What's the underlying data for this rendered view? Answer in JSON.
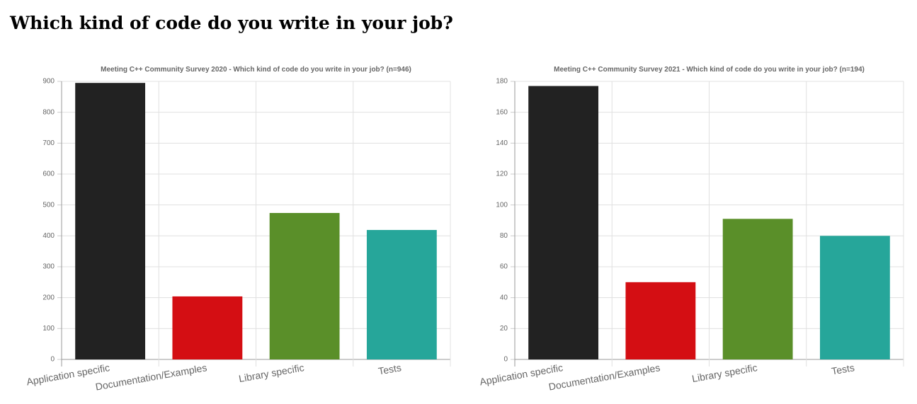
{
  "title": "Which kind of code do you write in your job?",
  "chart_data": [
    {
      "type": "bar",
      "title": "Meeting C++ Community Survey 2020 - Which kind of code do you write in your job? (n=946)",
      "categories": [
        "Application specific",
        "Documentation/Examples",
        "Library specific",
        "Tests"
      ],
      "values": [
        895,
        204,
        474,
        419
      ],
      "colors": [
        "#222222",
        "#d40e13",
        "#5a8f29",
        "#26a69a"
      ],
      "ylim": [
        0,
        900
      ],
      "yticks": [
        0,
        100,
        200,
        300,
        400,
        500,
        600,
        700,
        800,
        900
      ],
      "grid": true
    },
    {
      "type": "bar",
      "title": "Meeting C++ Community Survey 2021  - Which kind of code do you write in your job? (n=194)",
      "categories": [
        "Application specific",
        "Documentation/Examples",
        "Library specific",
        "Tests"
      ],
      "values": [
        177,
        50,
        91,
        80
      ],
      "colors": [
        "#222222",
        "#d40e13",
        "#5a8f29",
        "#26a69a"
      ],
      "ylim": [
        0,
        180
      ],
      "yticks": [
        0,
        20,
        40,
        60,
        80,
        100,
        120,
        140,
        160,
        180
      ],
      "grid": true
    }
  ]
}
